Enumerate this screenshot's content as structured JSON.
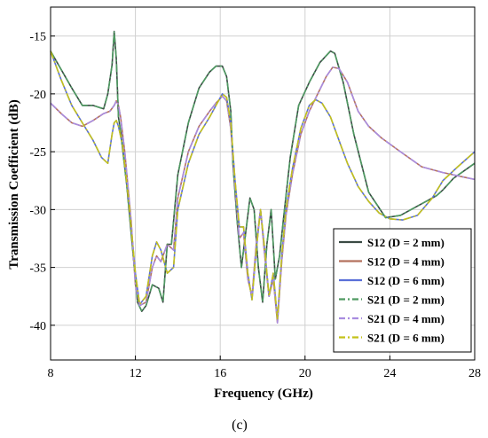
{
  "chart_data": {
    "type": "line",
    "xlabel": "Frequency (GHz)",
    "ylabel": "Transmission Coefficient (dB)",
    "caption": "(c)",
    "xlim": [
      8,
      28
    ],
    "ylim": [
      -43,
      -12.5
    ],
    "xticks": [
      8,
      12,
      16,
      20,
      24,
      28
    ],
    "yticks": [
      -15,
      -20,
      -25,
      -30,
      -35,
      -40
    ],
    "grid": true,
    "legend_position": "bottom-right",
    "series": [
      {
        "name": "S12 (D = 2 mm)",
        "color": "#3a4a44",
        "dash": "solid",
        "x": [
          8,
          9,
          9.5,
          10,
          10.5,
          10.7,
          10.9,
          11.0,
          11.1,
          11.2,
          11.3,
          11.6,
          11.9,
          12.1,
          12.3,
          12.5,
          12.8,
          13.1,
          13.3,
          13.5,
          13.7,
          14.0,
          14.5,
          15.0,
          15.5,
          15.8,
          16.1,
          16.3,
          16.5,
          16.6,
          16.8,
          17.0,
          17.2,
          17.4,
          17.6,
          17.8,
          18.0,
          18.2,
          18.4,
          18.6,
          18.8,
          19.0,
          19.3,
          19.7,
          20.2,
          20.7,
          21.2,
          21.4,
          21.8,
          22.3,
          23.0,
          23.8,
          24.5,
          25.5,
          26.2,
          26.5,
          27.0,
          28
        ],
        "y": [
          -16.3,
          -19.5,
          -21.0,
          -21.0,
          -21.3,
          -20.0,
          -17.5,
          -14.6,
          -17.0,
          -22.0,
          -23.2,
          -28.0,
          -34.0,
          -38.0,
          -38.8,
          -38.3,
          -36.5,
          -36.8,
          -38.0,
          -33.0,
          -33.0,
          -27.0,
          -22.5,
          -19.5,
          -18.1,
          -17.6,
          -17.6,
          -18.5,
          -21.5,
          -26.0,
          -31.0,
          -35.0,
          -32.0,
          -29.0,
          -30.0,
          -35.0,
          -38.0,
          -33.0,
          -30.0,
          -36.0,
          -34.0,
          -30.5,
          -25.5,
          -21.0,
          -19.0,
          -17.3,
          -16.3,
          -16.5,
          -19.0,
          -23.5,
          -28.5,
          -30.7,
          -30.5,
          -29.5,
          -28.8,
          -28.3,
          -27.3,
          -26.0
        ]
      },
      {
        "name": "S12 (D = 4 mm)",
        "color": "#b4725e",
        "dash": "solid",
        "x": [
          8,
          8.5,
          9.0,
          9.5,
          10.0,
          10.5,
          10.8,
          11.0,
          11.1,
          11.2,
          11.3,
          11.5,
          11.8,
          12.0,
          12.2,
          12.5,
          12.8,
          13.0,
          13.2,
          13.5,
          13.8,
          14.0,
          14.5,
          15.0,
          15.5,
          15.8,
          16.1,
          16.3,
          16.5,
          16.7,
          16.9,
          17.1,
          17.3,
          17.5,
          17.7,
          17.9,
          18.1,
          18.3,
          18.5,
          18.7,
          18.9,
          19.1,
          19.4,
          19.8,
          20.2,
          20.6,
          21.0,
          21.3,
          21.6,
          22.0,
          22.5,
          23.0,
          23.6,
          24.5,
          25.5,
          26.5,
          27.5,
          28
        ],
        "y": [
          -20.8,
          -21.7,
          -22.5,
          -22.8,
          -22.3,
          -21.7,
          -21.5,
          -21.0,
          -20.6,
          -21.0,
          -22.0,
          -25.0,
          -31.0,
          -36.5,
          -38.3,
          -38.0,
          -35.0,
          -34.0,
          -34.5,
          -33.0,
          -33.5,
          -29.0,
          -25.0,
          -22.8,
          -21.5,
          -20.8,
          -20.2,
          -20.6,
          -23.0,
          -28.0,
          -32.5,
          -32.0,
          -36.0,
          -37.5,
          -33.0,
          -30.0,
          -34.0,
          -37.5,
          -36.0,
          -39.8,
          -34.5,
          -30.5,
          -27.0,
          -23.5,
          -21.5,
          -20.0,
          -18.5,
          -17.7,
          -17.8,
          -19.0,
          -21.5,
          -22.8,
          -23.8,
          -25.0,
          -26.3,
          -26.8,
          -27.2,
          -27.4
        ]
      },
      {
        "name": "S12 (D = 6 mm)",
        "color": "#5a6fd8",
        "dash": "solid",
        "x": [
          8,
          8.5,
          9.0,
          9.5,
          10.0,
          10.4,
          10.7,
          10.9,
          11.0,
          11.1,
          11.2,
          11.4,
          11.7,
          12.0,
          12.2,
          12.5,
          12.8,
          13.0,
          13.2,
          13.5,
          13.8,
          14.0,
          14.5,
          15.0,
          15.5,
          15.8,
          16.1,
          16.3,
          16.5,
          16.7,
          16.9,
          17.1,
          17.3,
          17.5,
          17.7,
          17.9,
          18.1,
          18.3,
          18.5,
          18.7,
          18.9,
          19.1,
          19.4,
          19.8,
          20.2,
          20.5,
          20.8,
          21.2,
          21.6,
          22.0,
          22.5,
          23.0,
          23.5,
          24.0,
          24.6,
          25.3,
          26.0,
          26.5,
          27.2,
          28
        ],
        "y": [
          -16.3,
          -18.8,
          -21.0,
          -22.5,
          -24.0,
          -25.5,
          -26.0,
          -23.5,
          -22.5,
          -22.3,
          -22.8,
          -24.5,
          -29.5,
          -35.5,
          -38.2,
          -37.5,
          -34.0,
          -32.8,
          -33.5,
          -35.5,
          -35.0,
          -30.0,
          -26.0,
          -23.5,
          -22.0,
          -21.0,
          -20.0,
          -20.3,
          -22.5,
          -27.5,
          -31.5,
          -31.5,
          -35.5,
          -37.8,
          -33.5,
          -30.0,
          -33.5,
          -37.5,
          -35.5,
          -39.5,
          -34.0,
          -30.0,
          -26.5,
          -23.0,
          -21.0,
          -20.5,
          -20.8,
          -22.0,
          -24.0,
          -26.0,
          -28.0,
          -29.3,
          -30.3,
          -30.8,
          -30.9,
          -30.5,
          -29.0,
          -27.5,
          -26.3,
          -25.0
        ]
      },
      {
        "name": "S21 (D = 2 mm)",
        "color": "#4f9a62",
        "dash": "dashdot",
        "x": [
          8,
          9,
          9.5,
          10,
          10.5,
          10.7,
          10.9,
          11.0,
          11.1,
          11.2,
          11.3,
          11.6,
          11.9,
          12.1,
          12.3,
          12.5,
          12.8,
          13.1,
          13.3,
          13.5,
          13.7,
          14.0,
          14.5,
          15.0,
          15.5,
          15.8,
          16.1,
          16.3,
          16.5,
          16.6,
          16.8,
          17.0,
          17.2,
          17.4,
          17.6,
          17.8,
          18.0,
          18.2,
          18.4,
          18.6,
          18.8,
          19.0,
          19.3,
          19.7,
          20.2,
          20.7,
          21.2,
          21.4,
          21.8,
          22.3,
          23.0,
          23.8,
          24.5,
          25.5,
          26.2,
          26.5,
          27.0,
          28
        ],
        "y": [
          -16.3,
          -19.5,
          -21.0,
          -21.0,
          -21.3,
          -20.0,
          -17.5,
          -14.6,
          -17.0,
          -22.0,
          -23.2,
          -28.0,
          -34.0,
          -38.0,
          -38.8,
          -38.3,
          -36.5,
          -36.8,
          -38.0,
          -33.0,
          -33.0,
          -27.0,
          -22.5,
          -19.5,
          -18.1,
          -17.6,
          -17.6,
          -18.5,
          -21.5,
          -26.0,
          -31.0,
          -35.0,
          -32.0,
          -29.0,
          -30.0,
          -35.0,
          -38.0,
          -33.0,
          -30.0,
          -36.0,
          -34.0,
          -30.5,
          -25.5,
          -21.0,
          -19.0,
          -17.3,
          -16.3,
          -16.5,
          -19.0,
          -23.5,
          -28.5,
          -30.7,
          -30.5,
          -29.5,
          -28.8,
          -28.3,
          -27.3,
          -26.0
        ]
      },
      {
        "name": "S21 (D = 4 mm)",
        "color": "#a98ce0",
        "dash": "dashdot",
        "x": [
          8,
          8.5,
          9.0,
          9.5,
          10.0,
          10.5,
          10.8,
          11.0,
          11.1,
          11.2,
          11.3,
          11.5,
          11.8,
          12.0,
          12.2,
          12.5,
          12.8,
          13.0,
          13.2,
          13.5,
          13.8,
          14.0,
          14.5,
          15.0,
          15.5,
          15.8,
          16.1,
          16.3,
          16.5,
          16.7,
          16.9,
          17.1,
          17.3,
          17.5,
          17.7,
          17.9,
          18.1,
          18.3,
          18.5,
          18.7,
          18.9,
          19.1,
          19.4,
          19.8,
          20.2,
          20.6,
          21.0,
          21.3,
          21.6,
          22.0,
          22.5,
          23.0,
          23.6,
          24.5,
          25.5,
          26.5,
          27.5,
          28
        ],
        "y": [
          -20.8,
          -21.7,
          -22.5,
          -22.8,
          -22.3,
          -21.7,
          -21.5,
          -21.0,
          -20.6,
          -21.0,
          -22.0,
          -25.0,
          -31.0,
          -36.5,
          -38.3,
          -38.0,
          -35.0,
          -34.0,
          -34.5,
          -33.0,
          -33.5,
          -29.0,
          -25.0,
          -22.8,
          -21.5,
          -20.8,
          -20.2,
          -20.6,
          -23.0,
          -28.0,
          -32.5,
          -32.0,
          -36.0,
          -37.5,
          -33.0,
          -30.0,
          -34.0,
          -37.5,
          -36.0,
          -39.8,
          -34.5,
          -30.5,
          -27.0,
          -23.5,
          -21.5,
          -20.0,
          -18.5,
          -17.7,
          -17.8,
          -19.0,
          -21.5,
          -22.8,
          -23.8,
          -25.0,
          -26.3,
          -26.8,
          -27.2,
          -27.4
        ]
      },
      {
        "name": "S21 (D = 6 mm)",
        "color": "#c4c21a",
        "dash": "dashdot",
        "x": [
          8,
          8.5,
          9.0,
          9.5,
          10.0,
          10.4,
          10.7,
          10.9,
          11.0,
          11.1,
          11.2,
          11.4,
          11.7,
          12.0,
          12.2,
          12.5,
          12.8,
          13.0,
          13.2,
          13.5,
          13.8,
          14.0,
          14.5,
          15.0,
          15.5,
          15.8,
          16.1,
          16.3,
          16.5,
          16.7,
          16.9,
          17.1,
          17.3,
          17.5,
          17.7,
          17.9,
          18.1,
          18.3,
          18.5,
          18.7,
          18.9,
          19.1,
          19.4,
          19.8,
          20.2,
          20.5,
          20.8,
          21.2,
          21.6,
          22.0,
          22.5,
          23.0,
          23.5,
          24.0,
          24.6,
          25.3,
          26.0,
          26.5,
          27.2,
          28
        ],
        "y": [
          -16.3,
          -18.8,
          -21.0,
          -22.5,
          -24.0,
          -25.5,
          -26.0,
          -23.5,
          -22.5,
          -22.3,
          -22.8,
          -24.5,
          -29.5,
          -35.5,
          -38.2,
          -37.5,
          -34.0,
          -32.8,
          -33.5,
          -35.5,
          -35.0,
          -30.0,
          -26.0,
          -23.5,
          -22.0,
          -21.0,
          -20.0,
          -20.3,
          -22.5,
          -27.5,
          -31.5,
          -31.5,
          -35.5,
          -37.8,
          -33.5,
          -30.0,
          -33.5,
          -37.5,
          -35.5,
          -39.5,
          -34.0,
          -30.0,
          -26.5,
          -23.0,
          -21.0,
          -20.5,
          -20.8,
          -22.0,
          -24.0,
          -26.0,
          -28.0,
          -29.3,
          -30.3,
          -30.8,
          -30.9,
          -30.5,
          -29.0,
          -27.5,
          -26.3,
          -25.0
        ]
      }
    ]
  }
}
